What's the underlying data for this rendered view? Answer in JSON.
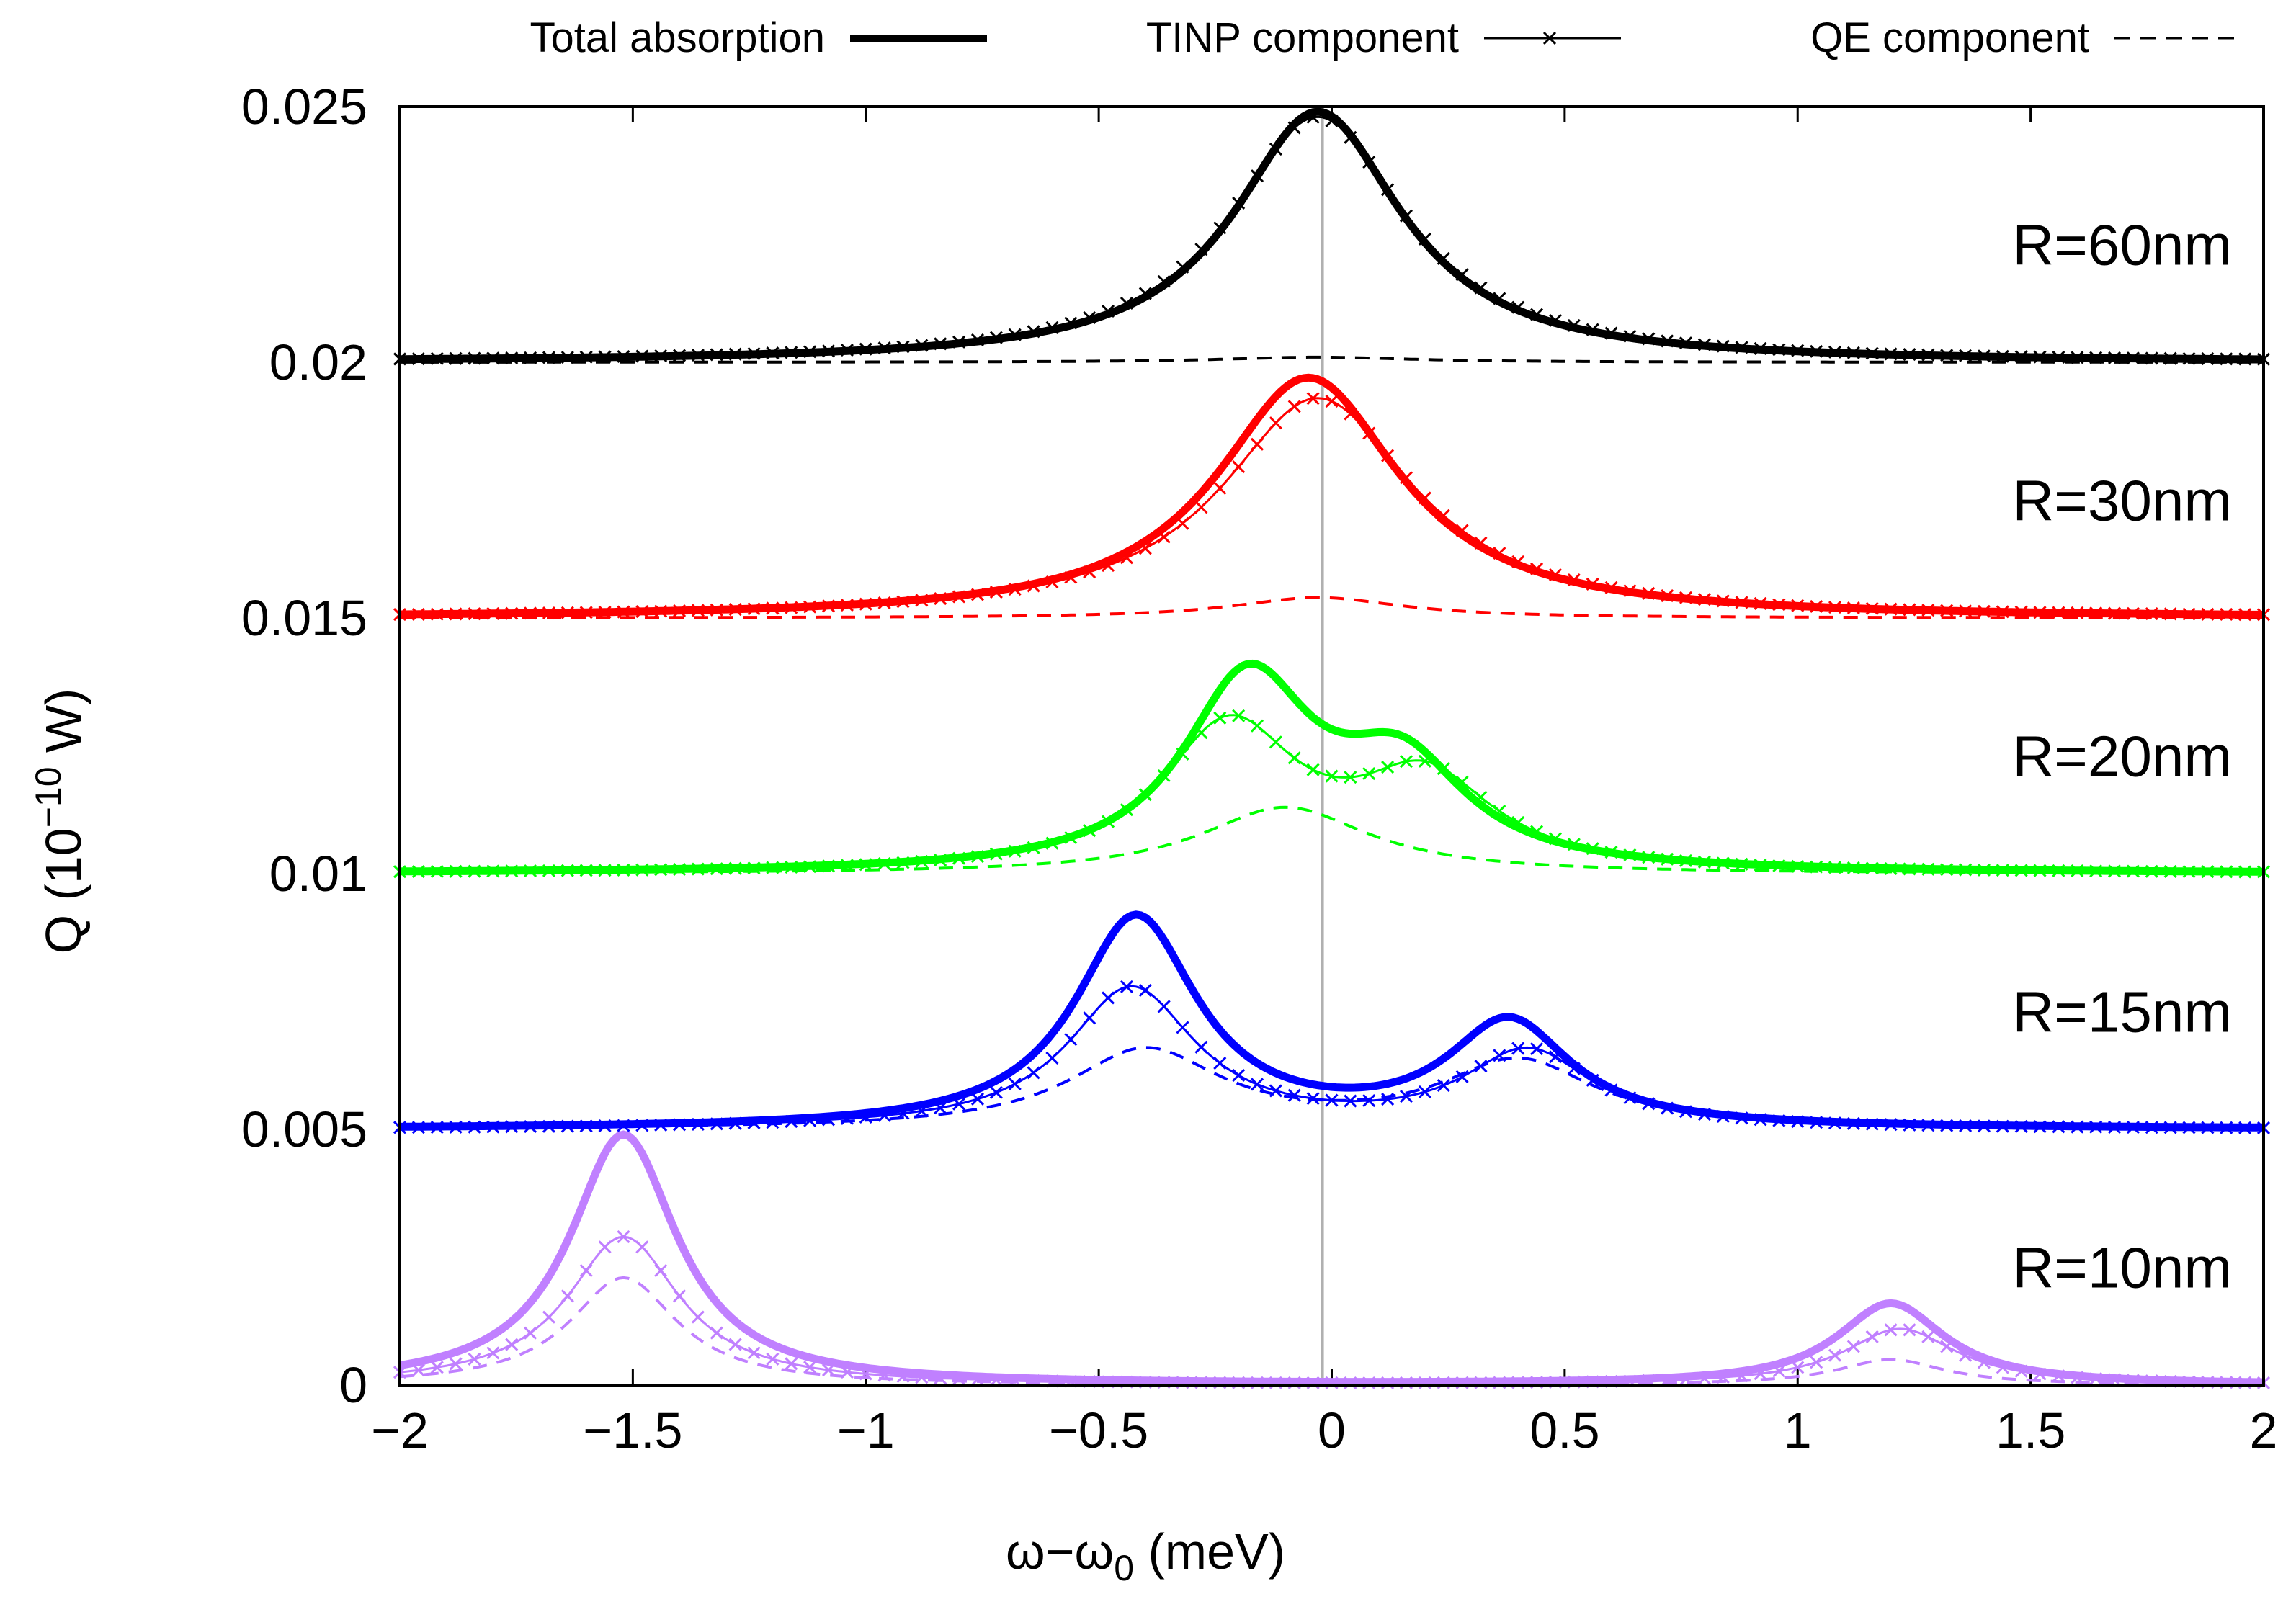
{
  "chart_data": {
    "type": "line",
    "title": "",
    "xlabel": "ω−ω0 (meV)",
    "xlabel_main": "ω−ω",
    "xlabel_sub": "0",
    "xlabel_tail": " (meV)",
    "ylabel_main": "Q (10",
    "ylabel_sup": "−10",
    "ylabel_tail": " W)",
    "xlim": [
      -2,
      2
    ],
    "ylim": [
      0,
      0.025
    ],
    "x_ticks": [
      "−2",
      "−1.5",
      "−1",
      "−0.5",
      "0",
      "0.5",
      "1",
      "1.5",
      "2"
    ],
    "x_tick_values": [
      -2,
      -1.5,
      -1,
      -0.5,
      0,
      0.5,
      1,
      1.5,
      2
    ],
    "y_ticks": [
      "0",
      "0.005",
      "0.01",
      "0.015",
      "0.02",
      "0.025"
    ],
    "y_tick_values": [
      0,
      0.005,
      0.01,
      0.015,
      0.02,
      0.025
    ],
    "vertical_reference_x": -0.02,
    "legend": {
      "position": "top",
      "entries": [
        {
          "label": "Total absorption",
          "style": "solid-thick"
        },
        {
          "label": "TINP component",
          "style": "thin-cross"
        },
        {
          "label": "QE component",
          "style": "dashed"
        }
      ]
    },
    "series": [
      {
        "name": "R=60nm",
        "color": "#000000",
        "offset": 0.02,
        "total": [
          [
            -1.5,
            0.0001
          ],
          [
            0,
            0.0049
          ]
        ],
        "tinp": [
          [
            -1.5,
            0.0001
          ],
          [
            0,
            0.0049
          ]
        ],
        "qe": [
          [
            0,
            0.0001
          ]
        ],
        "peaks_total": [
          {
            "x": -0.03,
            "y": 0.0249
          }
        ],
        "peaks_tinp": [
          {
            "x": -0.03,
            "y": 0.0248
          }
        ],
        "peaks_qe": [
          {
            "x": -0.03,
            "y": 0.0201
          }
        ]
      },
      {
        "name": "R=30nm",
        "color": "#ff0000",
        "offset": 0.015,
        "peaks_total": [
          {
            "x": -0.05,
            "y": 0.0197
          }
        ],
        "peaks_tinp": [
          {
            "x": -0.03,
            "y": 0.0193
          }
        ],
        "peaks_qe": [
          {
            "x": -0.03,
            "y": 0.0154
          }
        ]
      },
      {
        "name": "R=20nm",
        "color": "#00ff00",
        "offset": 0.01,
        "peaks_total": [
          {
            "x": -0.18,
            "y": 0.0141
          },
          {
            "x": 0.15,
            "y": 0.0127
          }
        ],
        "dip_total": {
          "x": 0.05,
          "y": 0.0126
        },
        "peaks_tinp": [
          {
            "x": -0.22,
            "y": 0.0131
          },
          {
            "x": 0.2,
            "y": 0.0122
          }
        ],
        "dip_tinp": {
          "x": 0.02,
          "y": 0.0116
        },
        "peaks_qe": [
          {
            "x": -0.1,
            "y": 0.0113
          }
        ]
      },
      {
        "name": "R=15nm",
        "color": "#0000ff",
        "offset": 0.005,
        "peaks_total": [
          {
            "x": -0.42,
            "y": 0.0092
          },
          {
            "x": 0.38,
            "y": 0.0072
          }
        ],
        "dip_total": {
          "x": 0.05,
          "y": 0.0059
        },
        "peaks_tinp": [
          {
            "x": -0.43,
            "y": 0.0078
          },
          {
            "x": 0.42,
            "y": 0.0066
          }
        ],
        "dip_tinp": {
          "x": 0.0,
          "y": 0.0052
        },
        "peaks_qe": [
          {
            "x": -0.4,
            "y": 0.0066
          },
          {
            "x": 0.4,
            "y": 0.0064
          }
        ],
        "dip_qe": {
          "x": 0.0,
          "y": 0.0058
        }
      },
      {
        "name": "R=10nm",
        "color": "#c080ff",
        "offset": 0.0,
        "peaks_total": [
          {
            "x": -1.52,
            "y": 0.0049
          },
          {
            "x": 1.2,
            "y": 0.0016
          }
        ],
        "peaks_tinp": [
          {
            "x": -1.52,
            "y": 0.0029
          },
          {
            "x": 1.22,
            "y": 0.0011
          }
        ],
        "peaks_qe": [
          {
            "x": -1.52,
            "y": 0.0021
          },
          {
            "x": 1.2,
            "y": 0.0005
          }
        ]
      }
    ]
  }
}
